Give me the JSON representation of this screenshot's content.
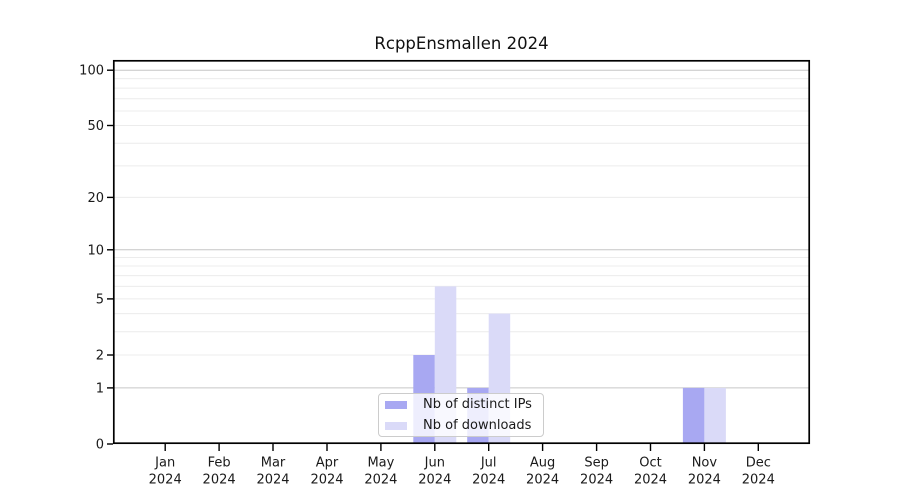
{
  "chart_data": {
    "type": "bar",
    "title": "RcppEnsmallen 2024",
    "categories": [
      "Jan",
      "Feb",
      "Mar",
      "Apr",
      "May",
      "Jun",
      "Jul",
      "Aug",
      "Sep",
      "Oct",
      "Nov",
      "Dec"
    ],
    "year_label": "2024",
    "series": [
      {
        "name": "Nb of distinct IPs",
        "color": "#a8a8f2",
        "values": [
          0,
          0,
          0,
          0,
          0,
          2,
          1,
          0,
          0,
          0,
          1,
          0
        ]
      },
      {
        "name": "Nb of downloads",
        "color": "#dadaf8",
        "values": [
          0,
          0,
          0,
          0,
          0,
          6,
          4,
          0,
          0,
          0,
          1,
          0
        ]
      }
    ],
    "yscale": "log1p",
    "y_ticks": [
      0,
      1,
      2,
      5,
      10,
      20,
      50,
      100
    ],
    "minor_grid_values": [
      2,
      3,
      4,
      5,
      6,
      7,
      8,
      9,
      20,
      30,
      40,
      50,
      60,
      70,
      80,
      90
    ],
    "decade_grid_values": [
      1,
      10,
      100
    ],
    "ylim": [
      0,
      113
    ],
    "grid": "horizontal",
    "legend_position": "inside-bottom-center",
    "colors": {
      "decade_grid": "#c6c6c6",
      "minor_grid": "#ececec",
      "spine": "#000000",
      "tick_text": "#1a1a1a"
    }
  }
}
